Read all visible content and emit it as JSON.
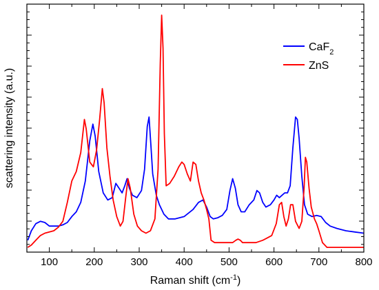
{
  "chart_data": {
    "type": "line",
    "xlabel": "Raman shift (cm",
    "xlabel_superscript": "-1",
    "xlabel_suffix": ")",
    "ylabel": "scattering intensity (a.u.)",
    "xlim": [
      50,
      800
    ],
    "ylim": [
      0,
      100
    ],
    "x_ticks": [
      100,
      200,
      300,
      400,
      500,
      600,
      700,
      800
    ],
    "y_tick_labels_shown": false,
    "grid": false,
    "legend_position": "top-right",
    "series": [
      {
        "name": "CaF",
        "name_subscript": "2",
        "color": "#0000ff",
        "points": [
          [
            52,
            5
          ],
          [
            60,
            9
          ],
          [
            70,
            12
          ],
          [
            80,
            13
          ],
          [
            90,
            12.5
          ],
          [
            100,
            11
          ],
          [
            110,
            11
          ],
          [
            120,
            11
          ],
          [
            130,
            11.5
          ],
          [
            140,
            12.5
          ],
          [
            150,
            15
          ],
          [
            160,
            17
          ],
          [
            170,
            21
          ],
          [
            180,
            30
          ],
          [
            190,
            47
          ],
          [
            197,
            54
          ],
          [
            202,
            49
          ],
          [
            210,
            34
          ],
          [
            220,
            25
          ],
          [
            230,
            22
          ],
          [
            240,
            23
          ],
          [
            248,
            29
          ],
          [
            255,
            27
          ],
          [
            262,
            25
          ],
          [
            268,
            28
          ],
          [
            273,
            31
          ],
          [
            278,
            27
          ],
          [
            285,
            24
          ],
          [
            295,
            23
          ],
          [
            305,
            26
          ],
          [
            312,
            35
          ],
          [
            318,
            53
          ],
          [
            322,
            57
          ],
          [
            326,
            45
          ],
          [
            330,
            33
          ],
          [
            338,
            24
          ],
          [
            345,
            20
          ],
          [
            355,
            16
          ],
          [
            365,
            14
          ],
          [
            380,
            14
          ],
          [
            400,
            15
          ],
          [
            420,
            18
          ],
          [
            432,
            21
          ],
          [
            442,
            22
          ],
          [
            450,
            19
          ],
          [
            458,
            15
          ],
          [
            465,
            14
          ],
          [
            475,
            14.5
          ],
          [
            485,
            15.5
          ],
          [
            495,
            18
          ],
          [
            502,
            26
          ],
          [
            508,
            31
          ],
          [
            514,
            27
          ],
          [
            520,
            20
          ],
          [
            527,
            17
          ],
          [
            535,
            17
          ],
          [
            545,
            20
          ],
          [
            555,
            22
          ],
          [
            562,
            26
          ],
          [
            568,
            25
          ],
          [
            575,
            21
          ],
          [
            582,
            19
          ],
          [
            592,
            20
          ],
          [
            600,
            22
          ],
          [
            606,
            24
          ],
          [
            612,
            23
          ],
          [
            618,
            24
          ],
          [
            624,
            25
          ],
          [
            630,
            25
          ],
          [
            636,
            28
          ],
          [
            642,
            44
          ],
          [
            648,
            57
          ],
          [
            652,
            56
          ],
          [
            656,
            48
          ],
          [
            662,
            32
          ],
          [
            668,
            20
          ],
          [
            675,
            16
          ],
          [
            685,
            15
          ],
          [
            695,
            15.5
          ],
          [
            705,
            15
          ],
          [
            715,
            12.5
          ],
          [
            725,
            11
          ],
          [
            740,
            10
          ],
          [
            760,
            9
          ],
          [
            780,
            8.5
          ],
          [
            800,
            8
          ]
        ]
      },
      {
        "name": "ZnS",
        "color": "#ff0000",
        "points": [
          [
            52,
            2
          ],
          [
            60,
            3
          ],
          [
            70,
            5
          ],
          [
            80,
            7
          ],
          [
            90,
            8
          ],
          [
            100,
            8.5
          ],
          [
            110,
            9
          ],
          [
            120,
            10.5
          ],
          [
            130,
            13
          ],
          [
            140,
            21
          ],
          [
            150,
            30
          ],
          [
            160,
            34
          ],
          [
            170,
            42
          ],
          [
            178,
            56
          ],
          [
            182,
            52
          ],
          [
            190,
            38
          ],
          [
            198,
            36
          ],
          [
            205,
            43
          ],
          [
            212,
            56
          ],
          [
            218,
            69
          ],
          [
            222,
            63
          ],
          [
            228,
            44
          ],
          [
            235,
            32
          ],
          [
            242,
            22
          ],
          [
            250,
            15
          ],
          [
            258,
            11
          ],
          [
            264,
            13
          ],
          [
            270,
            23
          ],
          [
            275,
            31
          ],
          [
            280,
            27
          ],
          [
            288,
            16
          ],
          [
            296,
            11
          ],
          [
            305,
            9
          ],
          [
            315,
            8
          ],
          [
            325,
            9
          ],
          [
            335,
            14
          ],
          [
            342,
            35
          ],
          [
            347,
            80
          ],
          [
            350,
            100
          ],
          [
            353,
            86
          ],
          [
            356,
            50
          ],
          [
            360,
            28
          ],
          [
            368,
            29
          ],
          [
            378,
            32
          ],
          [
            388,
            36
          ],
          [
            395,
            38
          ],
          [
            400,
            37
          ],
          [
            407,
            33
          ],
          [
            414,
            30
          ],
          [
            420,
            38
          ],
          [
            426,
            37
          ],
          [
            432,
            30
          ],
          [
            438,
            25
          ],
          [
            444,
            22
          ],
          [
            450,
            18
          ],
          [
            455,
            14
          ],
          [
            460,
            5
          ],
          [
            468,
            4
          ],
          [
            478,
            4
          ],
          [
            490,
            4
          ],
          [
            500,
            4
          ],
          [
            508,
            4
          ],
          [
            515,
            5
          ],
          [
            520,
            5.5
          ],
          [
            525,
            5
          ],
          [
            530,
            4
          ],
          [
            545,
            4
          ],
          [
            560,
            4
          ],
          [
            575,
            5
          ],
          [
            585,
            6
          ],
          [
            595,
            7
          ],
          [
            605,
            12
          ],
          [
            612,
            20
          ],
          [
            617,
            21
          ],
          [
            622,
            15
          ],
          [
            627,
            11
          ],
          [
            632,
            14
          ],
          [
            637,
            20
          ],
          [
            642,
            20
          ],
          [
            648,
            13
          ],
          [
            656,
            10
          ],
          [
            662,
            13
          ],
          [
            667,
            27
          ],
          [
            670,
            40
          ],
          [
            673,
            38
          ],
          [
            678,
            27
          ],
          [
            683,
            19
          ],
          [
            690,
            14
          ],
          [
            695,
            12
          ],
          [
            700,
            9
          ],
          [
            708,
            4
          ],
          [
            718,
            2
          ],
          [
            735,
            2
          ],
          [
            760,
            2
          ],
          [
            800,
            2
          ]
        ]
      }
    ]
  }
}
